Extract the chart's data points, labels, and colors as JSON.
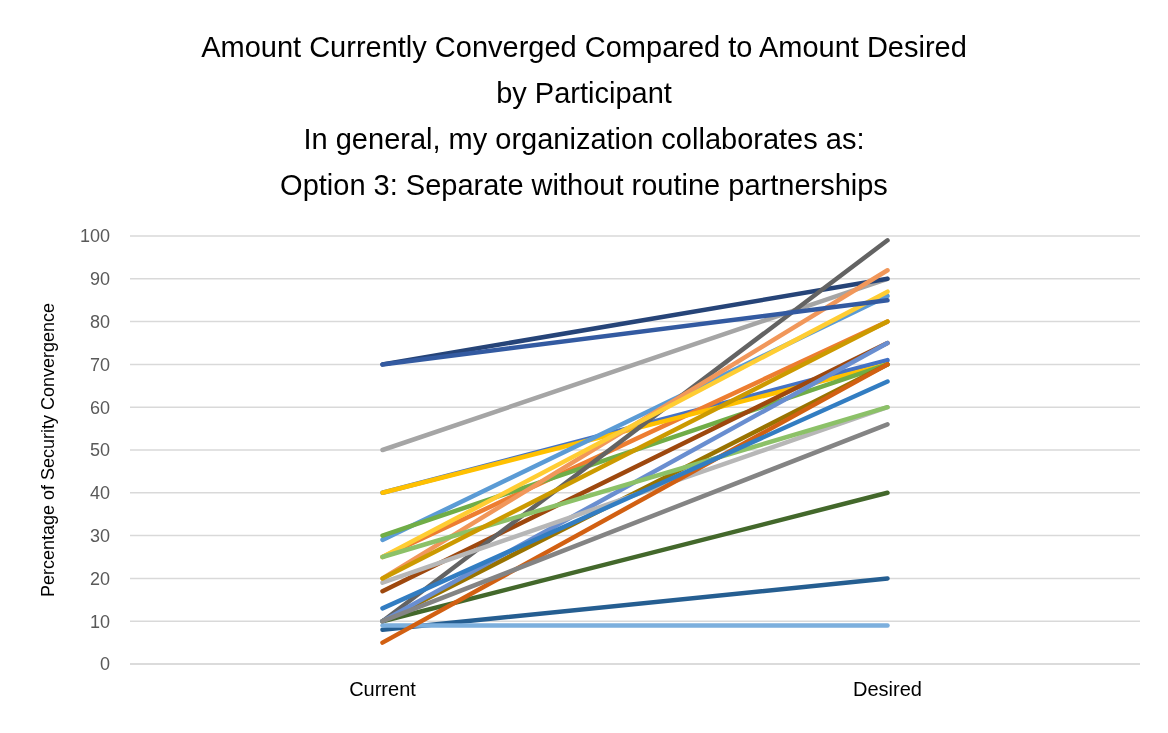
{
  "chart_data": {
    "type": "line",
    "title": "Amount Currently Converged Compared to Amount Desired\nby Participant\nIn general, my organization collaborates as:\nOption 3: Separate without routine partnerships",
    "ylabel": "Percentage of Security Convergence",
    "categories": [
      "Current",
      "Desired"
    ],
    "ylim": [
      0,
      100
    ],
    "yticks": [
      0,
      10,
      20,
      30,
      40,
      50,
      60,
      70,
      80,
      90,
      100
    ],
    "grid": true,
    "marker": "none",
    "line_style": "solid",
    "series": [
      {
        "color": "#4472c4",
        "values": [
          40,
          71
        ]
      },
      {
        "color": "#ed7d31",
        "values": [
          25,
          80
        ]
      },
      {
        "color": "#a5a5a5",
        "values": [
          50,
          90
        ]
      },
      {
        "color": "#ffc000",
        "values": [
          40,
          70
        ]
      },
      {
        "color": "#5b9bd5",
        "values": [
          29,
          86
        ]
      },
      {
        "color": "#70ad47",
        "values": [
          30,
          70
        ]
      },
      {
        "color": "#264478",
        "values": [
          70,
          90
        ]
      },
      {
        "color": "#9e480e",
        "values": [
          17,
          75
        ]
      },
      {
        "color": "#636363",
        "values": [
          10,
          99
        ]
      },
      {
        "color": "#997300",
        "values": [
          10,
          70
        ]
      },
      {
        "color": "#255e91",
        "values": [
          8,
          20
        ]
      },
      {
        "color": "#43682b",
        "values": [
          10,
          40
        ]
      },
      {
        "color": "#698ed0",
        "values": [
          10,
          75
        ]
      },
      {
        "color": "#f1975a",
        "values": [
          20,
          92
        ]
      },
      {
        "color": "#b7b7b7",
        "values": [
          19,
          60
        ]
      },
      {
        "color": "#ffcd33",
        "values": [
          25,
          87
        ]
      },
      {
        "color": "#7cafdd",
        "values": [
          9,
          9
        ]
      },
      {
        "color": "#8cc168",
        "values": [
          25,
          60
        ]
      },
      {
        "color": "#335aa1",
        "values": [
          70,
          85
        ]
      },
      {
        "color": "#d26012",
        "values": [
          5,
          70
        ]
      },
      {
        "color": "#848484",
        "values": [
          10,
          56
        ]
      },
      {
        "color": "#cc9a00",
        "values": [
          20,
          80
        ]
      },
      {
        "color": "#327dc2",
        "values": [
          13,
          66
        ]
      }
    ]
  }
}
